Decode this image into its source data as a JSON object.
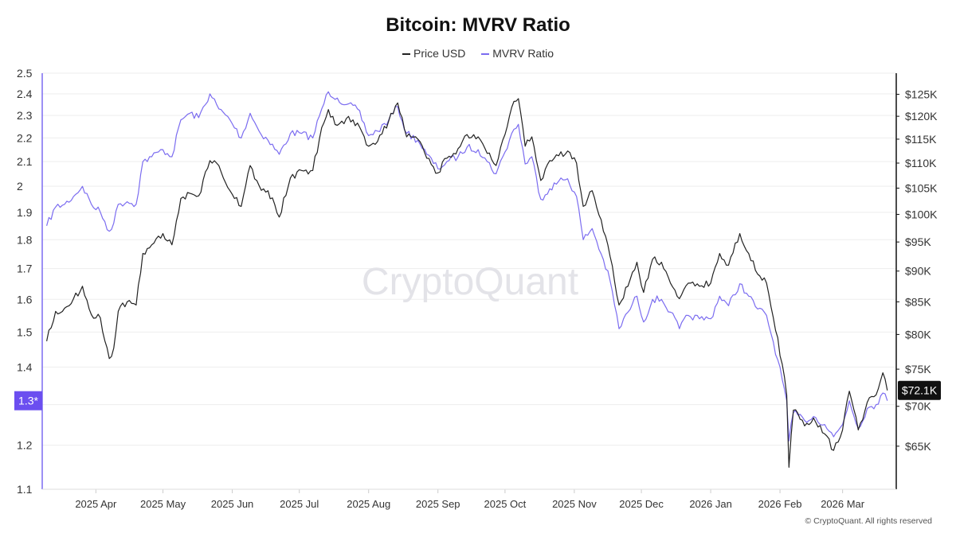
{
  "chart_data": {
    "type": "line",
    "title": "Bitcoin: MVRV Ratio",
    "watermark": "CryptoQuant",
    "copyright": "© CryptoQuant. All rights reserved",
    "x_ticks": [
      "2025 Apr",
      "2025 May",
      "2025 Jun",
      "2025 Jul",
      "2025 Aug",
      "2025 Sep",
      "2025 Oct",
      "2025 Nov",
      "2025 Dec",
      "2026 Jan",
      "2026 Feb",
      "2026 Mar"
    ],
    "y_left": {
      "label": "MVRV Ratio",
      "scale": "log",
      "range": [
        1.1,
        2.5
      ],
      "ticks": [
        1.1,
        1.2,
        1.3,
        1.4,
        1.5,
        1.6,
        1.7,
        1.8,
        1.9,
        2,
        2.1,
        2.2,
        2.3,
        2.4,
        2.5
      ],
      "current_label": "1.3*"
    },
    "y_right": {
      "label": "Price USD",
      "scale": "log",
      "range": [
        60000,
        130000
      ],
      "ticks": [
        65000,
        70000,
        75000,
        80000,
        85000,
        90000,
        95000,
        100000,
        105000,
        110000,
        115000,
        120000,
        125000
      ],
      "tick_labels": [
        "$65K",
        "$70K",
        "$75K",
        "$80K",
        "$85K",
        "$90K",
        "$95K",
        "$100K",
        "$105K",
        "$110K",
        "$115K",
        "$120K",
        "$125K"
      ],
      "current_label": "$72.1K"
    },
    "series": [
      {
        "name": "Price USD",
        "axis": "right",
        "color": "#222222",
        "points": [
          [
            "2025-03-10",
            79000
          ],
          [
            "2025-03-14",
            83500
          ],
          [
            "2025-03-18",
            84000
          ],
          [
            "2025-03-22",
            85500
          ],
          [
            "2025-03-26",
            87500
          ],
          [
            "2025-03-30",
            83000
          ],
          [
            "2025-04-03",
            82500
          ],
          [
            "2025-04-07",
            76500
          ],
          [
            "2025-04-09",
            78000
          ],
          [
            "2025-04-11",
            83500
          ],
          [
            "2025-04-15",
            85000
          ],
          [
            "2025-04-19",
            84500
          ],
          [
            "2025-04-22",
            93000
          ],
          [
            "2025-04-26",
            94500
          ],
          [
            "2025-05-01",
            96500
          ],
          [
            "2025-05-05",
            94500
          ],
          [
            "2025-05-09",
            103000
          ],
          [
            "2025-05-13",
            104000
          ],
          [
            "2025-05-17",
            103500
          ],
          [
            "2025-05-22",
            110500
          ],
          [
            "2025-05-26",
            109500
          ],
          [
            "2025-05-31",
            104500
          ],
          [
            "2025-06-05",
            101500
          ],
          [
            "2025-06-09",
            109500
          ],
          [
            "2025-06-13",
            105500
          ],
          [
            "2025-06-17",
            104500
          ],
          [
            "2025-06-22",
            99500
          ],
          [
            "2025-06-27",
            107000
          ],
          [
            "2025-07-02",
            108500
          ],
          [
            "2025-07-07",
            108500
          ],
          [
            "2025-07-11",
            117500
          ],
          [
            "2025-07-14",
            121500
          ],
          [
            "2025-07-18",
            118000
          ],
          [
            "2025-07-22",
            119500
          ],
          [
            "2025-07-27",
            118500
          ],
          [
            "2025-08-01",
            113500
          ],
          [
            "2025-08-05",
            114500
          ],
          [
            "2025-08-10",
            119000
          ],
          [
            "2025-08-14",
            123000
          ],
          [
            "2025-08-18",
            115500
          ],
          [
            "2025-08-23",
            115000
          ],
          [
            "2025-08-27",
            111000
          ],
          [
            "2025-09-01",
            108000
          ],
          [
            "2025-09-05",
            111000
          ],
          [
            "2025-09-10",
            113000
          ],
          [
            "2025-09-14",
            116000
          ],
          [
            "2025-09-19",
            115500
          ],
          [
            "2025-09-23",
            112000
          ],
          [
            "2025-09-27",
            109500
          ],
          [
            "2025-10-01",
            116000
          ],
          [
            "2025-10-04",
            122000
          ],
          [
            "2025-10-07",
            124000
          ],
          [
            "2025-10-10",
            113500
          ],
          [
            "2025-10-13",
            115500
          ],
          [
            "2025-10-17",
            106500
          ],
          [
            "2025-10-21",
            110500
          ],
          [
            "2025-10-25",
            111500
          ],
          [
            "2025-10-29",
            112500
          ],
          [
            "2025-11-02",
            110000
          ],
          [
            "2025-11-05",
            101500
          ],
          [
            "2025-11-09",
            104500
          ],
          [
            "2025-11-13",
            99000
          ],
          [
            "2025-11-17",
            92500
          ],
          [
            "2025-11-21",
            84500
          ],
          [
            "2025-11-25",
            87500
          ],
          [
            "2025-11-29",
            91500
          ],
          [
            "2025-12-02",
            86500
          ],
          [
            "2025-12-06",
            92000
          ],
          [
            "2025-12-10",
            91500
          ],
          [
            "2025-12-14",
            88000
          ],
          [
            "2025-12-18",
            85500
          ],
          [
            "2025-12-22",
            88000
          ],
          [
            "2025-12-27",
            87500
          ],
          [
            "2026-01-01",
            88000
          ],
          [
            "2026-01-05",
            93000
          ],
          [
            "2026-01-09",
            91000
          ],
          [
            "2026-01-14",
            96500
          ],
          [
            "2026-01-18",
            93000
          ],
          [
            "2026-01-22",
            89500
          ],
          [
            "2026-01-26",
            88000
          ],
          [
            "2026-01-31",
            79500
          ],
          [
            "2026-02-04",
            71500
          ],
          [
            "2026-02-05",
            62500
          ],
          [
            "2026-02-07",
            69500
          ],
          [
            "2026-02-12",
            67500
          ],
          [
            "2026-02-16",
            68500
          ],
          [
            "2026-02-21",
            66500
          ],
          [
            "2026-02-25",
            64500
          ],
          [
            "2026-03-01",
            67000
          ],
          [
            "2026-03-04",
            72000
          ],
          [
            "2026-03-08",
            67000
          ],
          [
            "2026-03-12",
            70500
          ],
          [
            "2026-03-16",
            71500
          ],
          [
            "2026-03-19",
            74500
          ],
          [
            "2026-03-21",
            72100
          ]
        ]
      },
      {
        "name": "MVRV Ratio",
        "axis": "left",
        "color": "#7b6cf0",
        "points": [
          [
            "2025-03-10",
            1.85
          ],
          [
            "2025-03-14",
            1.92
          ],
          [
            "2025-03-18",
            1.93
          ],
          [
            "2025-03-22",
            1.96
          ],
          [
            "2025-03-26",
            2.0
          ],
          [
            "2025-03-30",
            1.93
          ],
          [
            "2025-04-03",
            1.9
          ],
          [
            "2025-04-07",
            1.83
          ],
          [
            "2025-04-09",
            1.86
          ],
          [
            "2025-04-11",
            1.93
          ],
          [
            "2025-04-15",
            1.94
          ],
          [
            "2025-04-19",
            1.93
          ],
          [
            "2025-04-22",
            2.1
          ],
          [
            "2025-04-26",
            2.12
          ],
          [
            "2025-05-01",
            2.15
          ],
          [
            "2025-05-05",
            2.12
          ],
          [
            "2025-05-09",
            2.28
          ],
          [
            "2025-05-13",
            2.31
          ],
          [
            "2025-05-17",
            2.29
          ],
          [
            "2025-05-22",
            2.4
          ],
          [
            "2025-05-26",
            2.33
          ],
          [
            "2025-05-31",
            2.28
          ],
          [
            "2025-06-05",
            2.2
          ],
          [
            "2025-06-09",
            2.31
          ],
          [
            "2025-06-13",
            2.23
          ],
          [
            "2025-06-17",
            2.19
          ],
          [
            "2025-06-22",
            2.13
          ],
          [
            "2025-06-27",
            2.22
          ],
          [
            "2025-07-02",
            2.22
          ],
          [
            "2025-07-07",
            2.2
          ],
          [
            "2025-07-11",
            2.33
          ],
          [
            "2025-07-14",
            2.41
          ],
          [
            "2025-07-18",
            2.38
          ],
          [
            "2025-07-22",
            2.35
          ],
          [
            "2025-07-27",
            2.33
          ],
          [
            "2025-08-01",
            2.21
          ],
          [
            "2025-08-05",
            2.23
          ],
          [
            "2025-08-10",
            2.28
          ],
          [
            "2025-08-14",
            2.34
          ],
          [
            "2025-08-18",
            2.22
          ],
          [
            "2025-08-23",
            2.19
          ],
          [
            "2025-08-27",
            2.13
          ],
          [
            "2025-09-01",
            2.07
          ],
          [
            "2025-09-05",
            2.1
          ],
          [
            "2025-09-10",
            2.12
          ],
          [
            "2025-09-14",
            2.16
          ],
          [
            "2025-09-19",
            2.15
          ],
          [
            "2025-09-23",
            2.1
          ],
          [
            "2025-09-27",
            2.05
          ],
          [
            "2025-10-01",
            2.14
          ],
          [
            "2025-10-04",
            2.22
          ],
          [
            "2025-10-07",
            2.26
          ],
          [
            "2025-10-10",
            2.09
          ],
          [
            "2025-10-13",
            2.12
          ],
          [
            "2025-10-17",
            1.95
          ],
          [
            "2025-10-21",
            1.99
          ],
          [
            "2025-10-25",
            2.02
          ],
          [
            "2025-10-29",
            2.03
          ],
          [
            "2025-11-02",
            1.96
          ],
          [
            "2025-11-05",
            1.8
          ],
          [
            "2025-11-09",
            1.84
          ],
          [
            "2025-11-13",
            1.75
          ],
          [
            "2025-11-17",
            1.66
          ],
          [
            "2025-11-21",
            1.51
          ],
          [
            "2025-11-25",
            1.56
          ],
          [
            "2025-11-29",
            1.61
          ],
          [
            "2025-12-02",
            1.53
          ],
          [
            "2025-12-06",
            1.6
          ],
          [
            "2025-12-10",
            1.6
          ],
          [
            "2025-12-14",
            1.56
          ],
          [
            "2025-12-18",
            1.51
          ],
          [
            "2025-12-22",
            1.55
          ],
          [
            "2025-12-27",
            1.54
          ],
          [
            "2026-01-01",
            1.54
          ],
          [
            "2026-01-05",
            1.61
          ],
          [
            "2026-01-09",
            1.58
          ],
          [
            "2026-01-14",
            1.65
          ],
          [
            "2026-01-18",
            1.61
          ],
          [
            "2026-01-22",
            1.57
          ],
          [
            "2026-01-26",
            1.55
          ],
          [
            "2026-01-31",
            1.42
          ],
          [
            "2026-02-04",
            1.31
          ],
          [
            "2026-02-05",
            1.21
          ],
          [
            "2026-02-07",
            1.28
          ],
          [
            "2026-02-12",
            1.26
          ],
          [
            "2026-02-16",
            1.27
          ],
          [
            "2026-02-21",
            1.25
          ],
          [
            "2026-02-25",
            1.22
          ],
          [
            "2026-03-01",
            1.25
          ],
          [
            "2026-03-04",
            1.31
          ],
          [
            "2026-03-08",
            1.24
          ],
          [
            "2026-03-12",
            1.29
          ],
          [
            "2026-03-16",
            1.3
          ],
          [
            "2026-03-19",
            1.33
          ],
          [
            "2026-03-21",
            1.31
          ]
        ]
      }
    ]
  }
}
